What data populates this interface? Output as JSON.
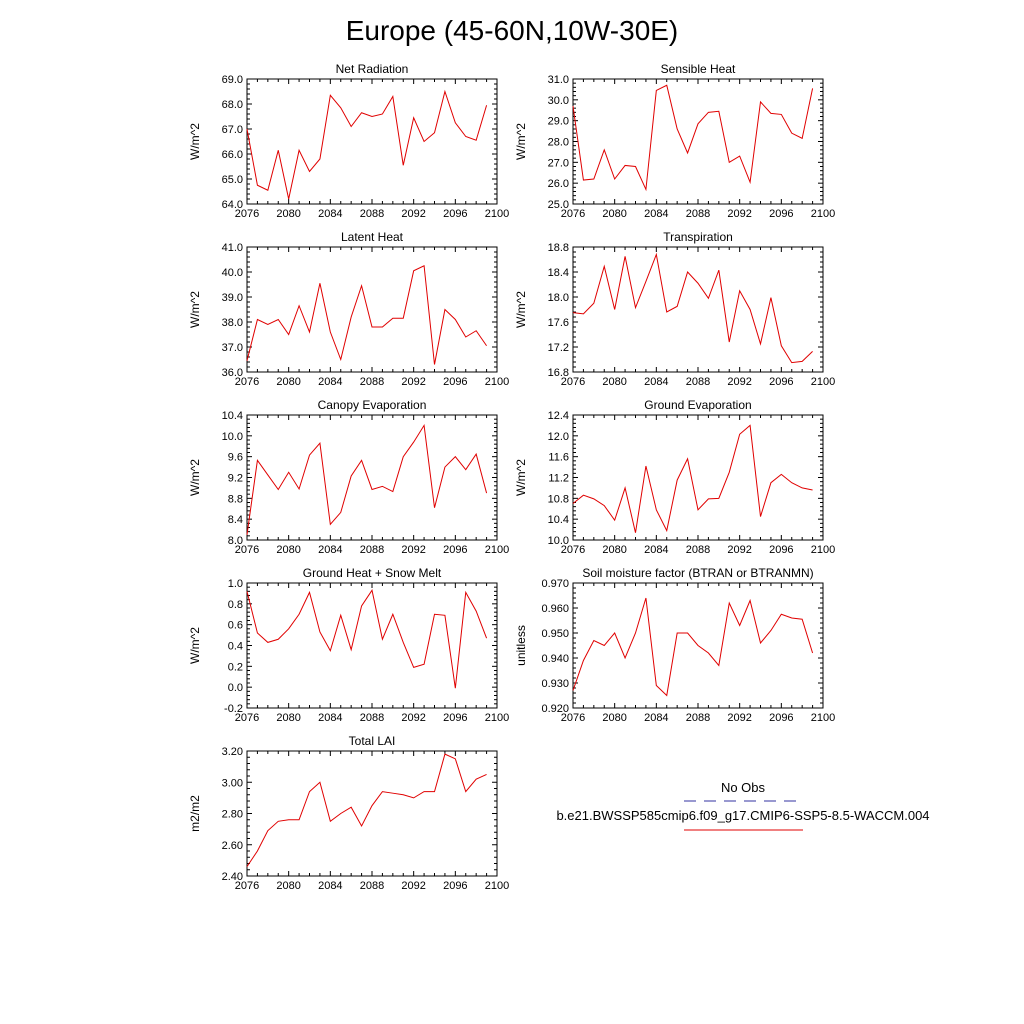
{
  "title": "Europe (45-60N,10W-30E)",
  "colors": {
    "model_line": "#e00000",
    "obs_line": "#3030a0",
    "axis": "#000000"
  },
  "legend": {
    "obs_label": "No Obs",
    "model_label": "b.e21.BWSSP585cmip6.f09_g17.CMIP6-SSP5-8.5-WACCM.004"
  },
  "x_ticks": [
    "2076",
    "2080",
    "2084",
    "2088",
    "2092",
    "2096",
    "2100"
  ],
  "chart_data": [
    {
      "type": "line",
      "title": "Net Radiation",
      "ylabel": "W/m^2",
      "xlim": [
        2076,
        2100
      ],
      "ylim": [
        64.0,
        69.0
      ],
      "yticks": [
        "64.0",
        "65.0",
        "66.0",
        "67.0",
        "68.0",
        "69.0"
      ],
      "series": [
        {
          "name": "b.e21.BWSSP585cmip6.f09_g17.CMIP6-SSP5-8.5-WACCM.004",
          "x": [
            2076,
            2077,
            2078,
            2079,
            2080,
            2081,
            2082,
            2083,
            2084,
            2085,
            2086,
            2087,
            2088,
            2089,
            2090,
            2091,
            2092,
            2093,
            2094,
            2095,
            2096,
            2097,
            2098,
            2099
          ],
          "values": [
            67.0,
            64.75,
            64.55,
            66.15,
            64.2,
            66.15,
            65.3,
            65.8,
            68.35,
            67.85,
            67.1,
            67.65,
            67.5,
            67.6,
            68.3,
            65.55,
            67.45,
            66.5,
            66.85,
            68.5,
            67.25,
            66.7,
            66.55,
            67.95
          ]
        }
      ]
    },
    {
      "type": "line",
      "title": "Sensible Heat",
      "ylabel": "W/m^2",
      "xlim": [
        2076,
        2100
      ],
      "ylim": [
        25.0,
        31.0
      ],
      "yticks": [
        "25.0",
        "26.0",
        "27.0",
        "28.0",
        "29.0",
        "30.0",
        "31.0"
      ],
      "series": [
        {
          "name": "b.e21.BWSSP585cmip6.f09_g17.CMIP6-SSP5-8.5-WACCM.004",
          "x": [
            2076,
            2077,
            2078,
            2079,
            2080,
            2081,
            2082,
            2083,
            2084,
            2085,
            2086,
            2087,
            2088,
            2089,
            2090,
            2091,
            2092,
            2093,
            2094,
            2095,
            2096,
            2097,
            2098,
            2099
          ],
          "values": [
            29.7,
            26.15,
            26.2,
            27.6,
            26.2,
            26.85,
            26.8,
            25.7,
            30.45,
            30.7,
            28.6,
            27.45,
            28.85,
            29.4,
            29.45,
            27.0,
            27.3,
            26.05,
            29.9,
            29.35,
            29.3,
            28.4,
            28.15,
            30.55
          ]
        }
      ]
    },
    {
      "type": "line",
      "title": "Latent Heat",
      "ylabel": "W/m^2",
      "xlim": [
        2076,
        2100
      ],
      "ylim": [
        36.0,
        41.0
      ],
      "yticks": [
        "36.0",
        "37.0",
        "38.0",
        "39.0",
        "40.0",
        "41.0"
      ],
      "series": [
        {
          "name": "b.e21.BWSSP585cmip6.f09_g17.CMIP6-SSP5-8.5-WACCM.004",
          "x": [
            2076,
            2077,
            2078,
            2079,
            2080,
            2081,
            2082,
            2083,
            2084,
            2085,
            2086,
            2087,
            2088,
            2089,
            2090,
            2091,
            2092,
            2093,
            2094,
            2095,
            2096,
            2097,
            2098,
            2099
          ],
          "values": [
            36.45,
            38.1,
            37.9,
            38.1,
            37.5,
            38.65,
            37.6,
            39.55,
            37.6,
            36.5,
            38.2,
            39.45,
            37.8,
            37.8,
            38.15,
            38.15,
            40.05,
            40.25,
            36.3,
            38.5,
            38.1,
            37.4,
            37.65,
            37.05
          ]
        }
      ]
    },
    {
      "type": "line",
      "title": "Transpiration",
      "ylabel": "W/m^2",
      "xlim": [
        2076,
        2100
      ],
      "ylim": [
        16.8,
        18.8
      ],
      "yticks": [
        "16.8",
        "17.2",
        "17.6",
        "18.0",
        "18.4",
        "18.8"
      ],
      "series": [
        {
          "name": "b.e21.BWSSP585cmip6.f09_g17.CMIP6-SSP5-8.5-WACCM.004",
          "x": [
            2076,
            2077,
            2078,
            2079,
            2080,
            2081,
            2082,
            2083,
            2084,
            2085,
            2086,
            2087,
            2088,
            2089,
            2090,
            2091,
            2092,
            2093,
            2094,
            2095,
            2096,
            2097,
            2098,
            2099
          ],
          "values": [
            17.75,
            17.73,
            17.9,
            18.49,
            17.8,
            18.65,
            17.83,
            18.25,
            18.68,
            17.76,
            17.85,
            18.4,
            18.22,
            17.98,
            18.43,
            17.28,
            18.1,
            17.8,
            17.25,
            17.99,
            17.22,
            16.95,
            16.97,
            17.13
          ]
        }
      ]
    },
    {
      "type": "line",
      "title": "Canopy Evaporation",
      "ylabel": "W/m^2",
      "xlim": [
        2076,
        2100
      ],
      "ylim": [
        8.0,
        10.4
      ],
      "yticks": [
        "8.0",
        "8.4",
        "8.8",
        "9.2",
        "9.6",
        "10.0",
        "10.4"
      ],
      "series": [
        {
          "name": "b.e21.BWSSP585cmip6.f09_g17.CMIP6-SSP5-8.5-WACCM.004",
          "x": [
            2076,
            2077,
            2078,
            2079,
            2080,
            2081,
            2082,
            2083,
            2084,
            2085,
            2086,
            2087,
            2088,
            2089,
            2090,
            2091,
            2092,
            2093,
            2094,
            2095,
            2096,
            2097,
            2098,
            2099
          ],
          "values": [
            8.1,
            9.53,
            9.25,
            8.97,
            9.3,
            8.98,
            9.63,
            9.86,
            8.3,
            8.53,
            9.23,
            9.53,
            8.97,
            9.03,
            8.93,
            9.6,
            9.88,
            10.2,
            8.62,
            9.4,
            9.6,
            9.35,
            9.65,
            8.9
          ]
        }
      ]
    },
    {
      "type": "line",
      "title": "Ground Evaporation",
      "ylabel": "W/m^2",
      "xlim": [
        2076,
        2100
      ],
      "ylim": [
        10.0,
        12.4
      ],
      "yticks": [
        "10.0",
        "10.4",
        "10.8",
        "11.2",
        "11.6",
        "12.0",
        "12.4"
      ],
      "series": [
        {
          "name": "b.e21.BWSSP585cmip6.f09_g17.CMIP6-SSP5-8.5-WACCM.004",
          "x": [
            2076,
            2077,
            2078,
            2079,
            2080,
            2081,
            2082,
            2083,
            2084,
            2085,
            2086,
            2087,
            2088,
            2089,
            2090,
            2091,
            2092,
            2093,
            2094,
            2095,
            2096,
            2097,
            2098,
            2099
          ],
          "values": [
            10.7,
            10.86,
            10.79,
            10.66,
            10.38,
            11.0,
            10.14,
            11.42,
            10.58,
            10.18,
            11.15,
            11.56,
            10.58,
            10.79,
            10.8,
            11.3,
            12.03,
            12.2,
            10.45,
            11.1,
            11.26,
            11.1,
            11.0,
            10.96
          ]
        }
      ]
    },
    {
      "type": "line",
      "title": "Ground Heat + Snow Melt",
      "ylabel": "W/m^2",
      "xlim": [
        2076,
        2100
      ],
      "ylim": [
        -0.2,
        1.0
      ],
      "yticks": [
        "-0.2",
        "0.0",
        "0.2",
        "0.4",
        "0.6",
        "0.8",
        "1.0"
      ],
      "series": [
        {
          "name": "b.e21.BWSSP585cmip6.f09_g17.CMIP6-SSP5-8.5-WACCM.004",
          "x": [
            2076,
            2077,
            2078,
            2079,
            2080,
            2081,
            2082,
            2083,
            2084,
            2085,
            2086,
            2087,
            2088,
            2089,
            2090,
            2091,
            2092,
            2093,
            2094,
            2095,
            2096,
            2097,
            2098,
            2099
          ],
          "values": [
            0.92,
            0.52,
            0.43,
            0.46,
            0.56,
            0.7,
            0.91,
            0.53,
            0.35,
            0.69,
            0.36,
            0.78,
            0.93,
            0.46,
            0.7,
            0.43,
            0.19,
            0.22,
            0.7,
            0.69,
            -0.01,
            0.91,
            0.73,
            0.47
          ]
        }
      ]
    },
    {
      "type": "line",
      "title": "Soil moisture factor (BTRAN or BTRANMN)",
      "ylabel": "unitless",
      "xlim": [
        2076,
        2100
      ],
      "ylim": [
        0.92,
        0.97
      ],
      "yticks": [
        "0.920",
        "0.930",
        "0.940",
        "0.950",
        "0.960",
        "0.970"
      ],
      "series": [
        {
          "name": "b.e21.BWSSP585cmip6.f09_g17.CMIP6-SSP5-8.5-WACCM.004",
          "x": [
            2076,
            2077,
            2078,
            2079,
            2080,
            2081,
            2082,
            2083,
            2084,
            2085,
            2086,
            2087,
            2088,
            2089,
            2090,
            2091,
            2092,
            2093,
            2094,
            2095,
            2096,
            2097,
            2098,
            2099
          ],
          "values": [
            0.927,
            0.939,
            0.947,
            0.945,
            0.95,
            0.94,
            0.95,
            0.964,
            0.929,
            0.925,
            0.95,
            0.95,
            0.945,
            0.942,
            0.937,
            0.962,
            0.953,
            0.963,
            0.946,
            0.951,
            0.9575,
            0.956,
            0.9555,
            0.942
          ]
        }
      ]
    },
    {
      "type": "line",
      "title": "Total LAI",
      "ylabel": "m2/m2",
      "xlim": [
        2076,
        2100
      ],
      "ylim": [
        2.4,
        3.2
      ],
      "yticks": [
        "2.40",
        "2.60",
        "2.80",
        "3.00",
        "3.20"
      ],
      "series": [
        {
          "name": "b.e21.BWSSP585cmip6.f09_g17.CMIP6-SSP5-8.5-WACCM.004",
          "x": [
            2076,
            2077,
            2078,
            2079,
            2080,
            2081,
            2082,
            2083,
            2084,
            2085,
            2086,
            2087,
            2088,
            2089,
            2090,
            2091,
            2092,
            2093,
            2094,
            2095,
            2096,
            2097,
            2098,
            2099
          ],
          "values": [
            2.46,
            2.56,
            2.69,
            2.75,
            2.76,
            2.76,
            2.94,
            3.0,
            2.75,
            2.8,
            2.84,
            2.72,
            2.85,
            2.94,
            2.93,
            2.92,
            2.9,
            2.94,
            2.94,
            3.18,
            3.15,
            2.94,
            3.02,
            3.05
          ]
        }
      ]
    }
  ]
}
